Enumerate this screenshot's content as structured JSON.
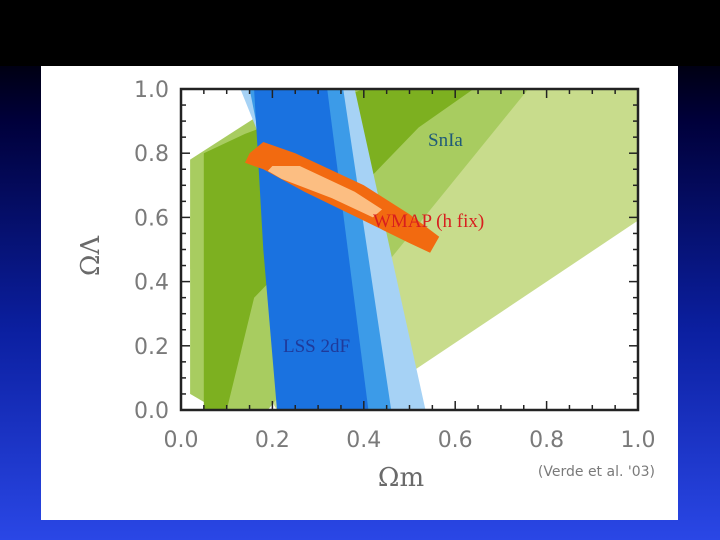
{
  "chart_data": {
    "type": "contour",
    "xlabel": "Ωm",
    "ylabel": "ΩΛ",
    "xlim": [
      0.0,
      1.0
    ],
    "ylim": [
      0.0,
      1.0
    ],
    "x_ticks": [
      "0.0",
      "0.2",
      "0.4",
      "0.6",
      "0.8",
      "1.0"
    ],
    "y_ticks": [
      "0.0",
      "0.2",
      "0.4",
      "0.6",
      "0.8",
      "1.0"
    ],
    "credit": "(Verde et al. '03)",
    "grid": false,
    "annotations": [
      {
        "text": "SnIa",
        "color": "#1f5a78"
      },
      {
        "text": "WMAP (h fix)",
        "color": "#d81e1e"
      },
      {
        "text": "LSS 2dF",
        "color": "#1f3a9a"
      }
    ],
    "regions": [
      {
        "name": "SnIa",
        "color": "#c8dc8c",
        "level": "outer",
        "polygon": [
          [
            0.02,
            0.44
          ],
          [
            0.02,
            0.6
          ],
          [
            0.4,
            1.0
          ],
          [
            1.0,
            1.0
          ],
          [
            1.0,
            0.59
          ],
          [
            0.38,
            0.0
          ],
          [
            0.21,
            0.0
          ]
        ]
      },
      {
        "name": "SnIa",
        "color": "#a8cc60",
        "level": "middle",
        "polygon": [
          [
            0.02,
            0.58
          ],
          [
            0.02,
            0.78
          ],
          [
            0.26,
            1.0
          ],
          [
            0.76,
            1.0
          ],
          [
            0.19,
            0.0
          ],
          [
            0.08,
            0.0
          ],
          [
            0.02,
            0.05
          ]
        ]
      },
      {
        "name": "SnIa",
        "color": "#7db020",
        "level": "inner",
        "polygon": [
          [
            0.05,
            0.8
          ],
          [
            0.14,
            0.86
          ],
          [
            0.4,
            1.0
          ],
          [
            0.64,
            1.0
          ],
          [
            0.52,
            0.88
          ],
          [
            0.16,
            0.35
          ],
          [
            0.1,
            0.0
          ],
          [
            0.05,
            0.0
          ]
        ]
      },
      {
        "name": "LSS 2dF",
        "color": "#a6d2f5",
        "level": "outer",
        "polygon": [
          [
            0.13,
            1.0
          ],
          [
            0.38,
            1.0
          ],
          [
            0.535,
            0.0
          ],
          [
            0.38,
            0.0
          ],
          [
            0.3,
            0.4
          ]
        ]
      },
      {
        "name": "LSS 2dF",
        "color": "#3c9be8",
        "level": "middle",
        "polygon": [
          [
            0.15,
            1.0
          ],
          [
            0.355,
            1.0
          ],
          [
            0.46,
            0.0
          ],
          [
            0.28,
            0.0
          ],
          [
            0.22,
            0.5
          ]
        ]
      },
      {
        "name": "LSS 2dF",
        "color": "#1a72e0",
        "level": "inner",
        "polygon": [
          [
            0.16,
            1.0
          ],
          [
            0.32,
            1.0
          ],
          [
            0.41,
            0.0
          ],
          [
            0.21,
            0.0
          ],
          [
            0.18,
            0.5
          ]
        ]
      },
      {
        "name": "WMAP (h fix)",
        "color": "#f26a10",
        "level": "outer",
        "polygon": [
          [
            0.15,
            0.8
          ],
          [
            0.18,
            0.835
          ],
          [
            0.25,
            0.8
          ],
          [
            0.4,
            0.7
          ],
          [
            0.5,
            0.61
          ],
          [
            0.565,
            0.54
          ],
          [
            0.545,
            0.49
          ],
          [
            0.5,
            0.52
          ],
          [
            0.4,
            0.59
          ],
          [
            0.27,
            0.68
          ],
          [
            0.18,
            0.75
          ],
          [
            0.14,
            0.77
          ]
        ]
      },
      {
        "name": "WMAP (h fix)",
        "color": "#fcbe82",
        "level": "inner",
        "polygon": [
          [
            0.2,
            0.76
          ],
          [
            0.26,
            0.76
          ],
          [
            0.38,
            0.68
          ],
          [
            0.44,
            0.625
          ],
          [
            0.42,
            0.6
          ],
          [
            0.33,
            0.66
          ],
          [
            0.22,
            0.72
          ],
          [
            0.19,
            0.745
          ]
        ]
      }
    ]
  }
}
